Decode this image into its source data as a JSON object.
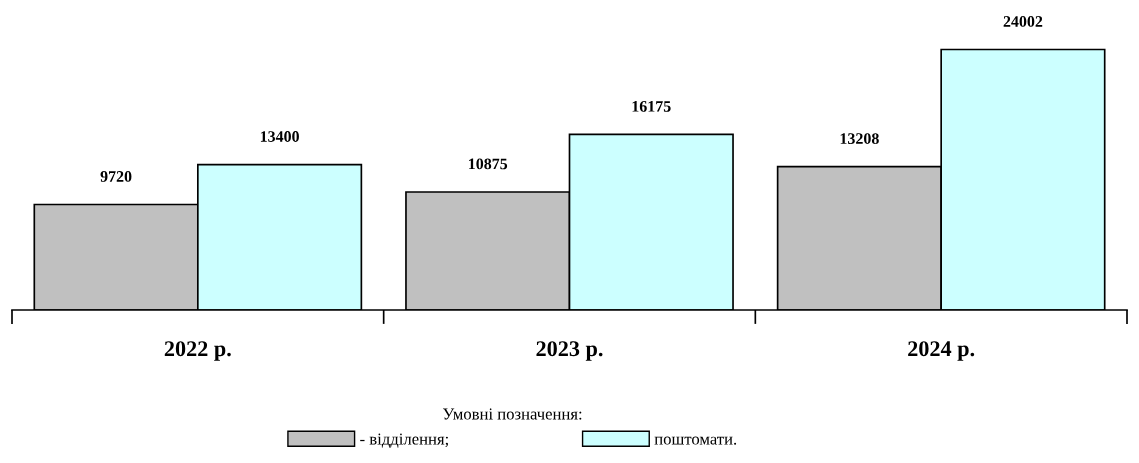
{
  "chart_data": {
    "type": "bar",
    "categories": [
      "2022 р.",
      "2023 р.",
      "2024 р."
    ],
    "series": [
      {
        "name": "- відділення;",
        "color": "#c0c0c0",
        "values": [
          9720,
          10875,
          13208
        ]
      },
      {
        "name": "поштомати.",
        "color": "#ccffff",
        "values": [
          13400,
          16175,
          24002
        ]
      }
    ],
    "data_labels": true,
    "legend": "bottom",
    "legend_title": "Умовні позначення:",
    "grid": false
  }
}
